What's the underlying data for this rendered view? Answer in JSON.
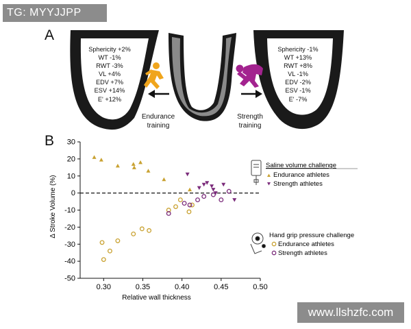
{
  "watermarks": {
    "top": "TG: MYYJJPP",
    "bottom": "www.llshzfc.com"
  },
  "panelA": {
    "label": "A",
    "endurance": {
      "stats": [
        "Sphericity +2%",
        "WT -1%",
        "RWT -3%",
        "VL +4%",
        "EDV +7%",
        "ESV +14%",
        "E' +12%"
      ],
      "caption": [
        "Endurance",
        "training"
      ]
    },
    "strength": {
      "stats": [
        "Sphericity -1%",
        "WT +13%",
        "RWT +8%",
        "VL -1%",
        "EDV -2%",
        "ESV -1%",
        "E' -7%"
      ],
      "caption": [
        "Strength",
        "training"
      ]
    },
    "colors": {
      "endurance": "#f0a51c",
      "strength": "#a3238f",
      "heart_wall": "#1a1a1a",
      "heart_center": "#8a8a8a"
    }
  },
  "panelB": {
    "label": "B"
  },
  "chart_data": {
    "type": "scatter",
    "xlabel": "Relative wall thickness",
    "ylabel": "Δ Stroke Volume (%)",
    "xlim": [
      0.27,
      0.5
    ],
    "ylim": [
      -50,
      30
    ],
    "xticks": [
      0.3,
      0.35,
      0.4,
      0.45,
      0.5
    ],
    "xtick_labels": [
      "0.30",
      "0.35",
      "0.40",
      "0.45",
      "0.50"
    ],
    "yticks": [
      30,
      20,
      10,
      0,
      -10,
      -20,
      -30,
      -40,
      -50
    ],
    "ytick_labels": [
      "30",
      "20",
      "10",
      "0",
      "-10",
      "-20",
      "-30",
      "-40",
      "-50"
    ],
    "reference_line": {
      "y": 0,
      "style": "dashed"
    },
    "legends": [
      {
        "title": "Saline volume challenge",
        "entries": [
          "Endurance athletes",
          "Strength athletes"
        ]
      },
      {
        "title": "Hand grip pressure challenge",
        "entries": [
          "Endurance athletes",
          "Strength athletes"
        ]
      }
    ],
    "series": [
      {
        "name": "Endurance athletes (saline)",
        "marker": "triangle-up",
        "color": "#c9a232",
        "x": [
          0.288,
          0.297,
          0.318,
          0.338,
          0.339,
          0.347,
          0.357,
          0.377,
          0.41
        ],
        "y": [
          21,
          19.5,
          16,
          17,
          15,
          18,
          13,
          8,
          2
        ]
      },
      {
        "name": "Strength athletes (saline)",
        "marker": "triangle-down",
        "color": "#7b2c7b",
        "x": [
          0.407,
          0.422,
          0.428,
          0.432,
          0.438,
          0.44,
          0.443,
          0.453,
          0.467
        ],
        "y": [
          11,
          3,
          5,
          6,
          4,
          2,
          0,
          5,
          -4
        ]
      },
      {
        "name": "Endurance athletes (hand grip)",
        "marker": "circle-open",
        "color": "#c9a232",
        "x": [
          0.298,
          0.3,
          0.308,
          0.318,
          0.338,
          0.349,
          0.358,
          0.383,
          0.392,
          0.398,
          0.409,
          0.413
        ],
        "y": [
          -29,
          -39,
          -34,
          -28,
          -24,
          -21,
          -22,
          -10,
          -8,
          -4,
          -11,
          -7
        ]
      },
      {
        "name": "Strength athletes (hand grip)",
        "marker": "circle-open",
        "color": "#7b2c7b",
        "x": [
          0.383,
          0.403,
          0.41,
          0.42,
          0.428,
          0.44,
          0.45,
          0.46
        ],
        "y": [
          -12,
          -6,
          -7,
          -4,
          -2,
          -1,
          -4,
          1
        ]
      }
    ]
  }
}
